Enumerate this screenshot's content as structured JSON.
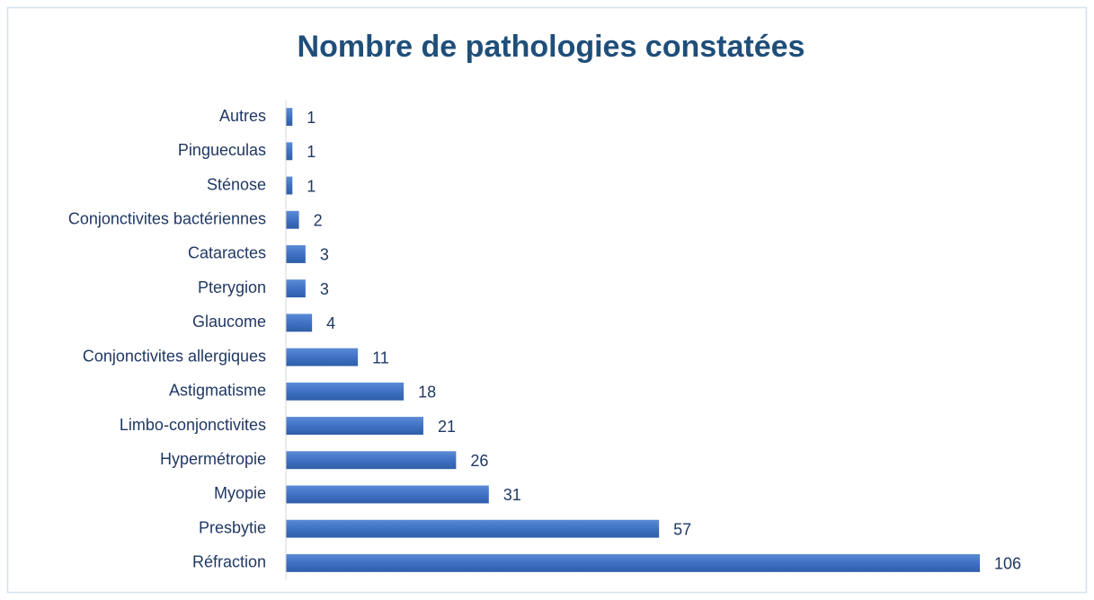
{
  "chart_data": {
    "type": "hbar",
    "title": "Nombre de pathologies constatées",
    "categories": [
      "Autres",
      "Pingueculas",
      "Sténose",
      "Conjonctivites bactériennes",
      "Cataractes",
      "Pterygion",
      "Glaucome",
      "Conjonctivites allergiques",
      "Astigmatisme",
      "Limbo-conjonctivites",
      "Hypermétropie",
      "Myopie",
      "Presbytie",
      "Réfraction"
    ],
    "values": [
      1,
      1,
      1,
      2,
      3,
      3,
      4,
      11,
      18,
      21,
      26,
      31,
      57,
      106
    ],
    "color": "#4472c4",
    "xlim": [
      0,
      120
    ]
  }
}
